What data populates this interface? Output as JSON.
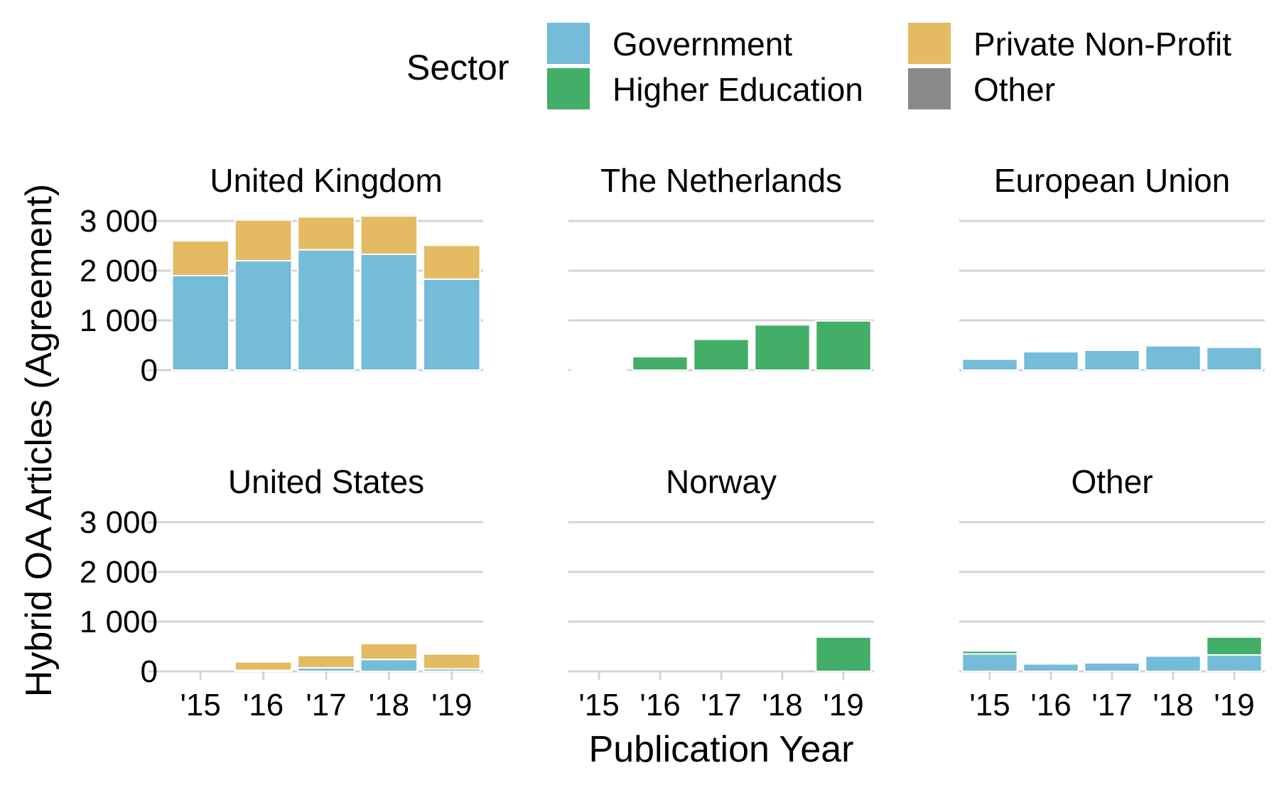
{
  "chart_data": {
    "type": "bar",
    "stacked": true,
    "facets": true,
    "xlabel": "Publication Year",
    "ylabel": "Hybrid OA Articles (Agreement)",
    "ylim": [
      0,
      3300
    ],
    "yticks": [
      0,
      1000,
      2000,
      3000
    ],
    "ytick_labels": [
      "0",
      "1 000",
      "2 000",
      "3 000"
    ],
    "categories": [
      "'15",
      "'16",
      "'17",
      "'18",
      "'19"
    ],
    "grid": true,
    "legend": {
      "title": "Sector",
      "position": "top",
      "items": [
        {
          "name": "Government",
          "color": "#75BBDA"
        },
        {
          "name": "Higher Education",
          "color": "#42AE67"
        },
        {
          "name": "Private Non-Profit",
          "color": "#E4BB62"
        },
        {
          "name": "Other",
          "color": "#8A8A8A"
        }
      ]
    },
    "panels": [
      {
        "title": "United Kingdom",
        "series": [
          {
            "name": "Government",
            "values": [
              1900,
              2200,
              2420,
              2330,
              1830
            ]
          },
          {
            "name": "Higher Education",
            "values": [
              0,
              0,
              0,
              0,
              0
            ]
          },
          {
            "name": "Private Non-Profit",
            "values": [
              700,
              820,
              660,
              770,
              680
            ]
          },
          {
            "name": "Other",
            "values": [
              0,
              0,
              0,
              0,
              0
            ]
          }
        ]
      },
      {
        "title": "The Netherlands",
        "series": [
          {
            "name": "Government",
            "values": [
              0,
              0,
              0,
              0,
              0
            ]
          },
          {
            "name": "Higher Education",
            "values": [
              5,
              270,
              620,
              910,
              990
            ]
          },
          {
            "name": "Private Non-Profit",
            "values": [
              0,
              0,
              0,
              0,
              0
            ]
          },
          {
            "name": "Other",
            "values": [
              0,
              0,
              0,
              0,
              0
            ]
          }
        ]
      },
      {
        "title": "European Union",
        "series": [
          {
            "name": "Government",
            "values": [
              220,
              370,
              400,
              490,
              460
            ]
          },
          {
            "name": "Higher Education",
            "values": [
              0,
              0,
              0,
              0,
              0
            ]
          },
          {
            "name": "Private Non-Profit",
            "values": [
              0,
              0,
              0,
              0,
              0
            ]
          },
          {
            "name": "Other",
            "values": [
              0,
              0,
              0,
              0,
              0
            ]
          }
        ]
      },
      {
        "title": "United States",
        "series": [
          {
            "name": "Government",
            "values": [
              0,
              20,
              70,
              240,
              50
            ]
          },
          {
            "name": "Higher Education",
            "values": [
              0,
              0,
              0,
              0,
              0
            ]
          },
          {
            "name": "Private Non-Profit",
            "values": [
              0,
              170,
              250,
              320,
              300
            ]
          },
          {
            "name": "Other",
            "values": [
              0,
              0,
              0,
              0,
              0
            ]
          }
        ]
      },
      {
        "title": "Norway",
        "series": [
          {
            "name": "Government",
            "values": [
              0,
              0,
              0,
              0,
              0
            ]
          },
          {
            "name": "Higher Education",
            "values": [
              0,
              0,
              0,
              0,
              690
            ]
          },
          {
            "name": "Private Non-Profit",
            "values": [
              0,
              0,
              0,
              0,
              0
            ]
          },
          {
            "name": "Other",
            "values": [
              0,
              0,
              0,
              0,
              0
            ]
          }
        ]
      },
      {
        "title": "Other",
        "series": [
          {
            "name": "Government",
            "values": [
              350,
              150,
              170,
              310,
              330
            ]
          },
          {
            "name": "Higher Education",
            "values": [
              60,
              20,
              0,
              30,
              360
            ]
          },
          {
            "name": "Private Non-Profit",
            "values": [
              0,
              20,
              0,
              10,
              0
            ]
          },
          {
            "name": "Other",
            "values": [
              0,
              0,
              0,
              0,
              0
            ]
          }
        ]
      }
    ]
  }
}
